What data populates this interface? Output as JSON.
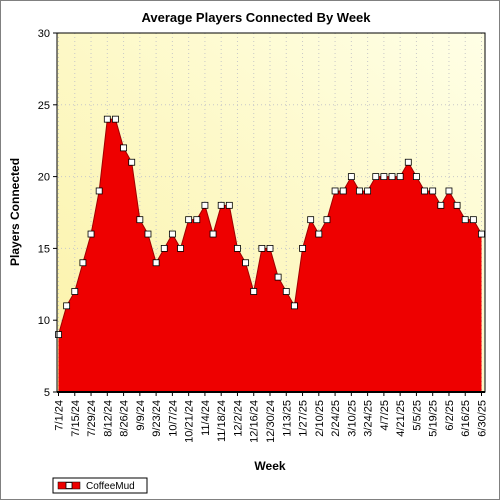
{
  "chart_data": {
    "type": "area",
    "title": "Average Players Connected By Week",
    "xlabel": "Week",
    "ylabel": "Players Connected",
    "ylim": [
      5,
      30
    ],
    "yticks": [
      5,
      10,
      15,
      20,
      25,
      30
    ],
    "grid": true,
    "legend_position": "bottom-left",
    "x_tick_labels": [
      "7/1/24",
      "7/15/24",
      "7/29/24",
      "8/12/24",
      "8/26/24",
      "9/9/24",
      "9/23/24",
      "10/7/24",
      "10/21/24",
      "11/4/24",
      "11/18/24",
      "12/2/24",
      "12/16/24",
      "12/30/24",
      "1/13/25",
      "1/27/25",
      "2/10/25",
      "2/24/25",
      "3/10/25",
      "3/24/25",
      "4/7/25",
      "4/21/25",
      "5/5/25",
      "5/19/25",
      "6/2/25",
      "6/16/25",
      "6/30/25"
    ],
    "series": [
      {
        "name": "CoffeeMud",
        "color": "#ee0000",
        "values": [
          9,
          11,
          12,
          14,
          16,
          19,
          24,
          24,
          22,
          21,
          17,
          16,
          14,
          15,
          16,
          15,
          17,
          17,
          18,
          16,
          18,
          18,
          15,
          14,
          12,
          15,
          15,
          13,
          12,
          11,
          15,
          17,
          16,
          17,
          19,
          19,
          20,
          19,
          19,
          20,
          20,
          20,
          20,
          21,
          20,
          19,
          19,
          18,
          19,
          18,
          17,
          17,
          16
        ]
      }
    ]
  }
}
